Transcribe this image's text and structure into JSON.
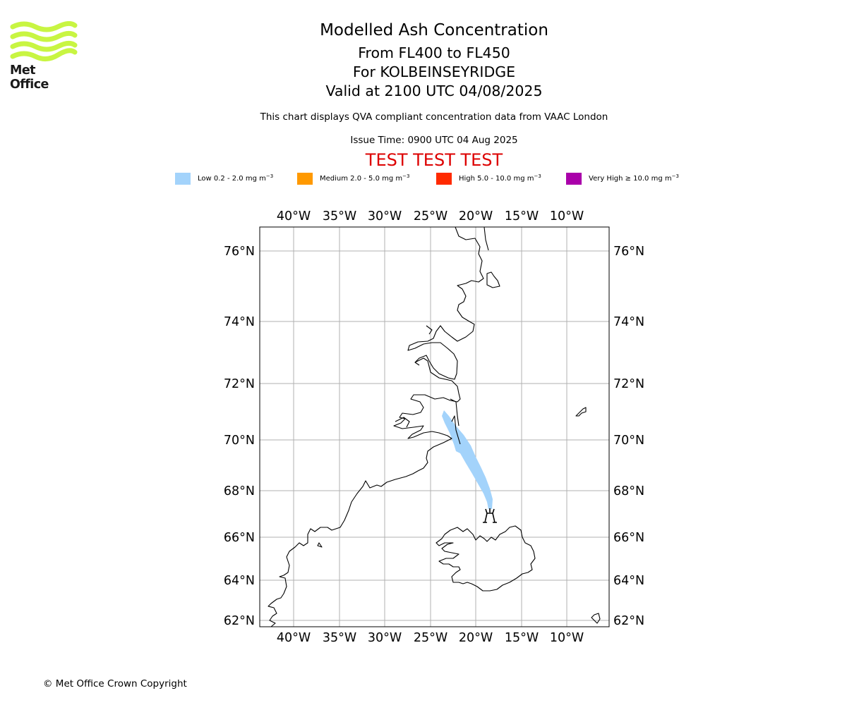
{
  "logo": {
    "text": "Met Office",
    "color": "#c8f542"
  },
  "title": {
    "line1": "Modelled Ash Concentration",
    "line2": "From FL400 to FL450",
    "line3": "For KOLBEINSEYRIDGE",
    "line4": "Valid at 2100 UTC 04/08/2025"
  },
  "subtitle": "This chart displays QVA compliant concentration data from VAAC London",
  "issue_time": "Issue Time: 0900 UTC 04 Aug 2025",
  "test_banner": "TEST TEST TEST",
  "test_color": "#dd0000",
  "legend": [
    {
      "label": "Low 0.2 - 2.0 mg m",
      "color": "#a3d3fb"
    },
    {
      "label": "Medium 2.0 - 5.0 mg m",
      "color": "#ff9900"
    },
    {
      "label": "High 5.0 - 10.0 mg m",
      "color": "#ff2a00"
    },
    {
      "label": "Very High ≥ 10.0 mg m",
      "color": "#aa00aa"
    }
  ],
  "legend_unit_exponent": "−3",
  "map": {
    "lon_labels": [
      "40°W",
      "35°W",
      "30°W",
      "25°W",
      "20°W",
      "15°W",
      "10°W"
    ],
    "lat_labels": [
      "76°N",
      "74°N",
      "72°N",
      "70°N",
      "68°N",
      "66°N",
      "64°N",
      "62°N"
    ],
    "lon_range": [
      -43.8,
      -5.5
    ],
    "lat_range": [
      61.7,
      76.9
    ],
    "gridlines": true,
    "volcano_symbol": "volcano-icon",
    "ash_plume_level": "Low"
  },
  "copyright": "© Met Office Crown Copyright"
}
